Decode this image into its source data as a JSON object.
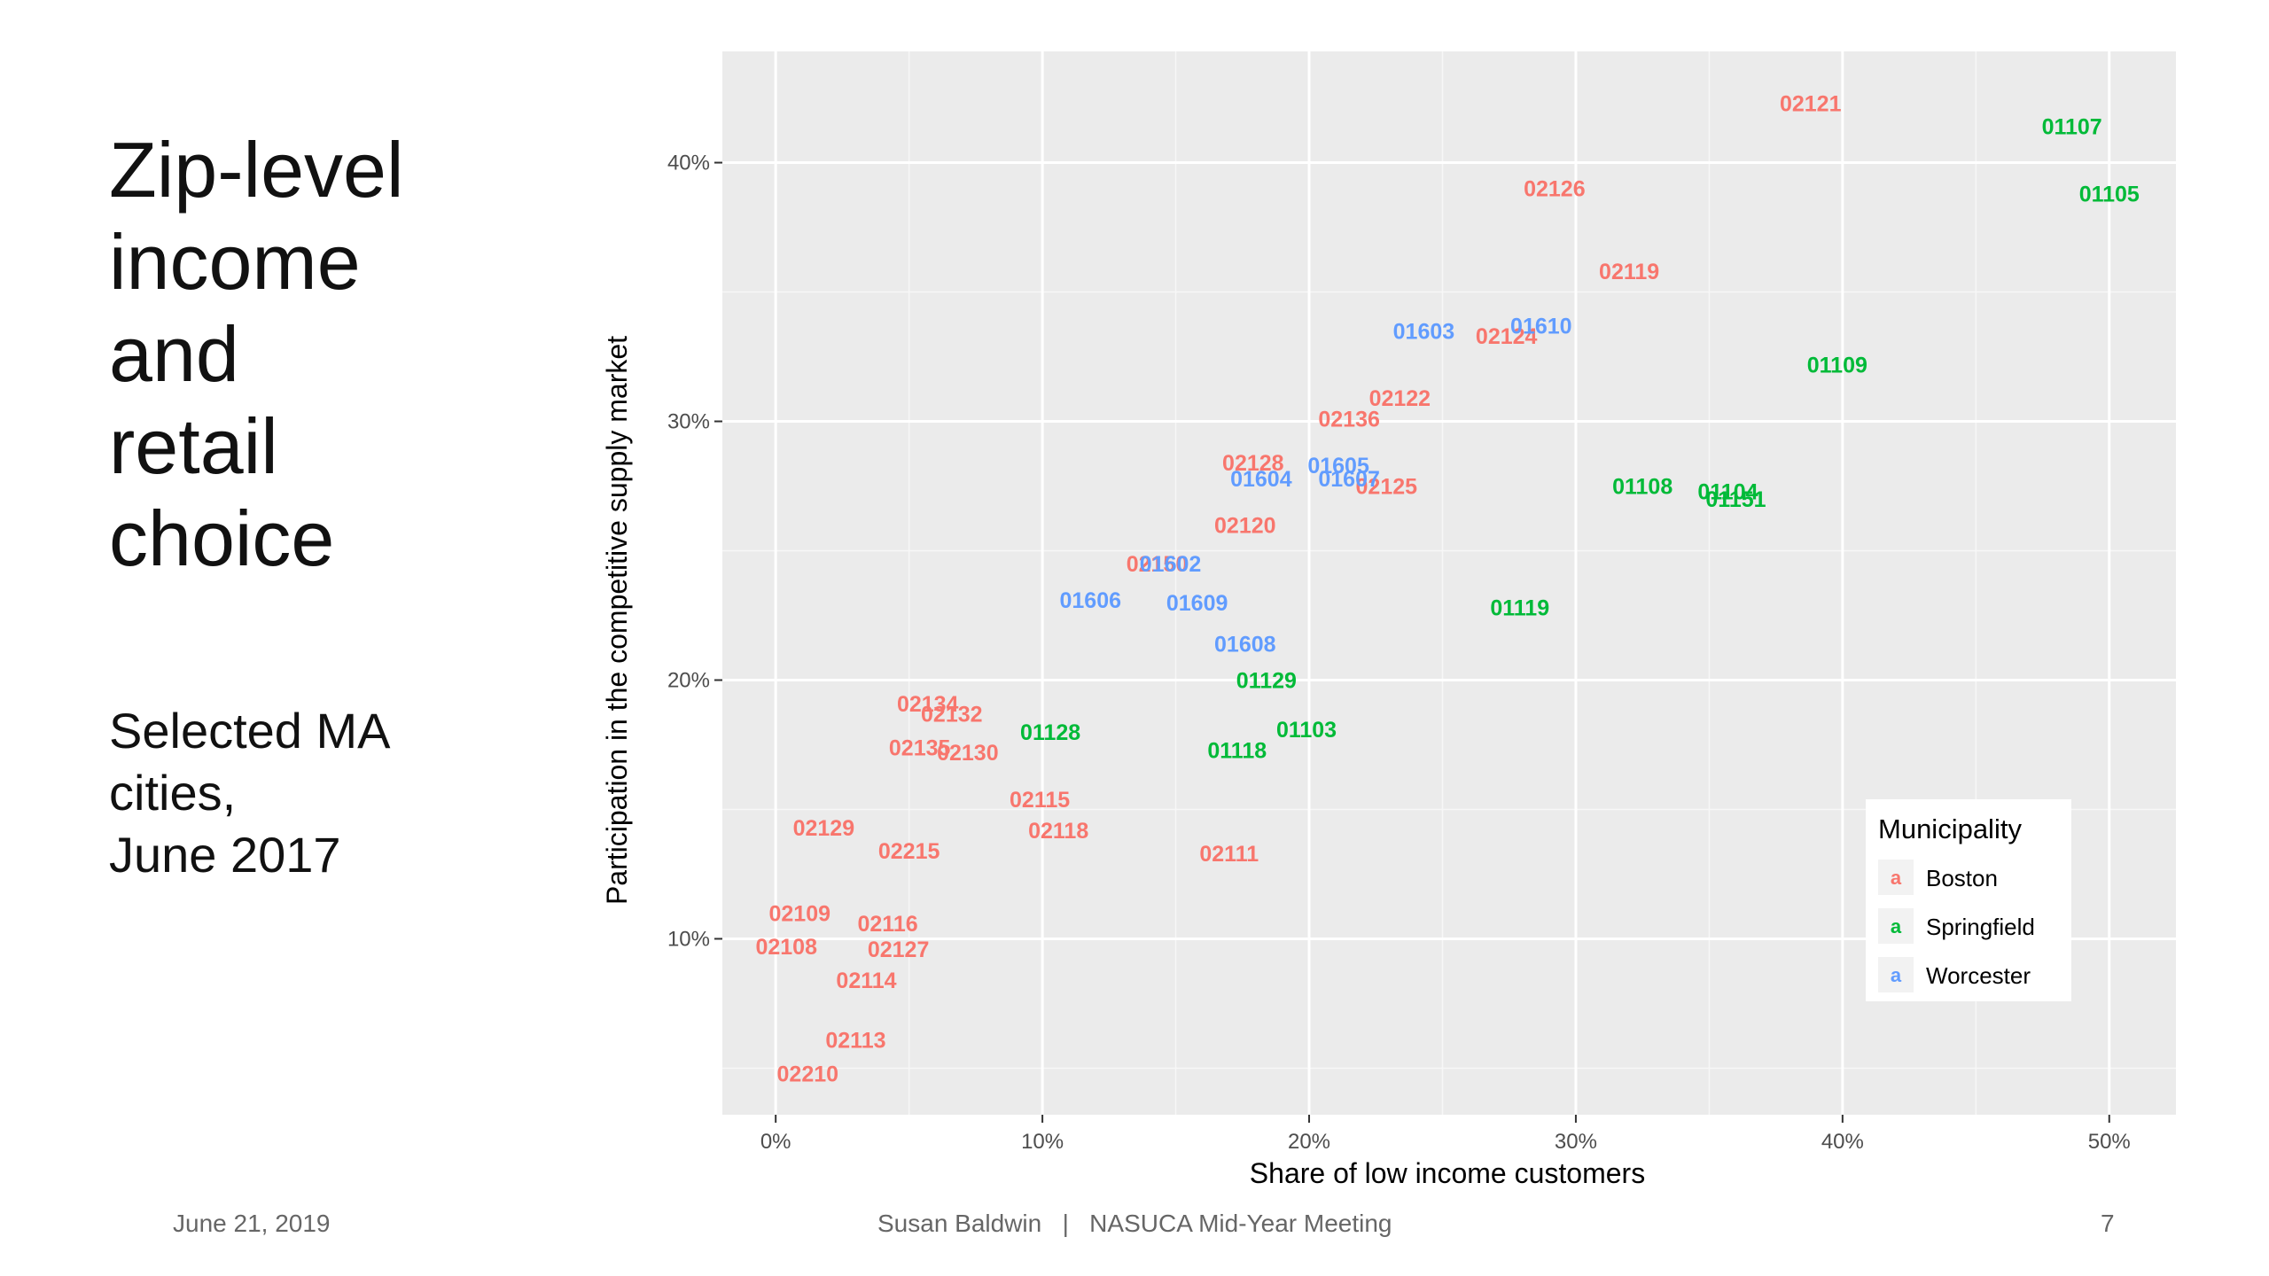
{
  "slide": {
    "title_lines": [
      "Zip-level",
      "income",
      "and",
      "retail",
      "choice"
    ],
    "subtitle_lines": [
      "Selected MA",
      "cities,",
      "June 2017"
    ]
  },
  "footer": {
    "date": "June 21, 2019",
    "center": "Susan Baldwin   |   NASUCA Mid-Year Meeting",
    "page": "7"
  },
  "chart_data": {
    "type": "scatter",
    "xlabel": "Share of low income customers",
    "ylabel": "Participation in the competitive supply market",
    "xlim": [
      -0.02,
      0.525
    ],
    "ylim": [
      0.032,
      0.443
    ],
    "x_ticks": [
      0,
      0.1,
      0.2,
      0.3,
      0.4,
      0.5
    ],
    "x_tick_labels": [
      "0%",
      "10%",
      "20%",
      "30%",
      "40%",
      "50%"
    ],
    "y_ticks": [
      0.1,
      0.2,
      0.3,
      0.4
    ],
    "y_tick_labels": [
      "10%",
      "20%",
      "30%",
      "40%"
    ],
    "grid": true,
    "legend": {
      "title": "Municipality",
      "key_glyph": "a",
      "placement": "bottom-right"
    },
    "series": [
      {
        "name": "Boston",
        "color": "#F8766D",
        "points": [
          {
            "label": "02121",
            "x": 0.388,
            "y": 0.423
          },
          {
            "label": "02126",
            "x": 0.292,
            "y": 0.39
          },
          {
            "label": "02119",
            "x": 0.32,
            "y": 0.358
          },
          {
            "label": "02124",
            "x": 0.274,
            "y": 0.333
          },
          {
            "label": "02122",
            "x": 0.234,
            "y": 0.309
          },
          {
            "label": "02136",
            "x": 0.215,
            "y": 0.301
          },
          {
            "label": "02128",
            "x": 0.179,
            "y": 0.284
          },
          {
            "label": "02125",
            "x": 0.229,
            "y": 0.275
          },
          {
            "label": "02120",
            "x": 0.176,
            "y": 0.26
          },
          {
            "label": "02150",
            "x": 0.143,
            "y": 0.245
          },
          {
            "label": "02134",
            "x": 0.057,
            "y": 0.191
          },
          {
            "label": "02132",
            "x": 0.066,
            "y": 0.187
          },
          {
            "label": "02135",
            "x": 0.054,
            "y": 0.174
          },
          {
            "label": "02130",
            "x": 0.072,
            "y": 0.172
          },
          {
            "label": "02115",
            "x": 0.099,
            "y": 0.154
          },
          {
            "label": "02118",
            "x": 0.106,
            "y": 0.142
          },
          {
            "label": "02129",
            "x": 0.018,
            "y": 0.143
          },
          {
            "label": "02215",
            "x": 0.05,
            "y": 0.134
          },
          {
            "label": "02111",
            "x": 0.17,
            "y": 0.133
          },
          {
            "label": "02109",
            "x": 0.009,
            "y": 0.11
          },
          {
            "label": "02116",
            "x": 0.042,
            "y": 0.106
          },
          {
            "label": "02108",
            "x": 0.004,
            "y": 0.097
          },
          {
            "label": "02127",
            "x": 0.046,
            "y": 0.096
          },
          {
            "label": "02114",
            "x": 0.034,
            "y": 0.084
          },
          {
            "label": "02113",
            "x": 0.03,
            "y": 0.061
          },
          {
            "label": "02210",
            "x": 0.012,
            "y": 0.048
          }
        ]
      },
      {
        "name": "Springfield",
        "color": "#00BA38",
        "points": [
          {
            "label": "01107",
            "x": 0.486,
            "y": 0.414
          },
          {
            "label": "01105",
            "x": 0.5,
            "y": 0.388
          },
          {
            "label": "01109",
            "x": 0.398,
            "y": 0.322
          },
          {
            "label": "01108",
            "x": 0.325,
            "y": 0.275
          },
          {
            "label": "01104",
            "x": 0.357,
            "y": 0.273
          },
          {
            "label": "01151",
            "x": 0.36,
            "y": 0.27
          },
          {
            "label": "01119",
            "x": 0.279,
            "y": 0.228
          },
          {
            "label": "01129",
            "x": 0.184,
            "y": 0.2
          },
          {
            "label": "01128",
            "x": 0.103,
            "y": 0.18
          },
          {
            "label": "01103",
            "x": 0.199,
            "y": 0.181
          },
          {
            "label": "01118",
            "x": 0.173,
            "y": 0.173
          }
        ]
      },
      {
        "name": "Worcester",
        "color": "#619CFF",
        "points": [
          {
            "label": "01603",
            "x": 0.243,
            "y": 0.335
          },
          {
            "label": "01610",
            "x": 0.287,
            "y": 0.337
          },
          {
            "label": "01605",
            "x": 0.211,
            "y": 0.283
          },
          {
            "label": "01604",
            "x": 0.182,
            "y": 0.278
          },
          {
            "label": "01607",
            "x": 0.215,
            "y": 0.278
          },
          {
            "label": "01602",
            "x": 0.148,
            "y": 0.245
          },
          {
            "label": "01606",
            "x": 0.118,
            "y": 0.231
          },
          {
            "label": "01609",
            "x": 0.158,
            "y": 0.23
          },
          {
            "label": "01608",
            "x": 0.176,
            "y": 0.214
          }
        ]
      }
    ]
  }
}
